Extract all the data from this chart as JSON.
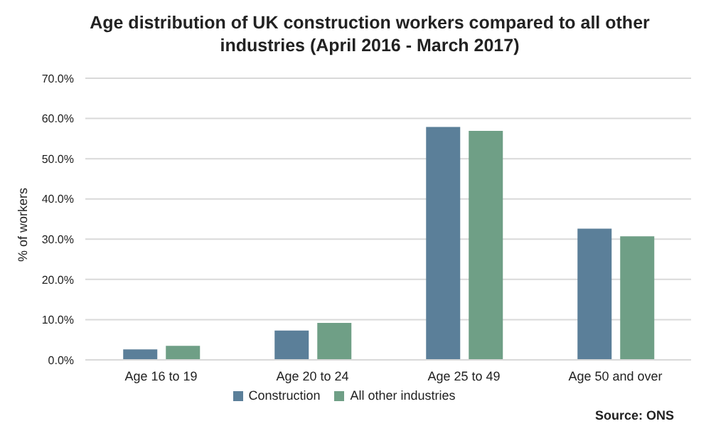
{
  "chart_data": {
    "type": "bar",
    "title": "Age distribution of UK construction workers compared to all other industries (April 2016 - March 2017)",
    "ylabel": "% of workers",
    "categories": [
      "Age 16 to 19",
      "Age 20 to 24",
      "Age 25 to 49",
      "Age 50 and over"
    ],
    "series": [
      {
        "name": "Construction",
        "color": "#5b7f99",
        "values": [
          2.6,
          7.3,
          57.9,
          32.6
        ]
      },
      {
        "name": "All other industries",
        "color": "#6f9f86",
        "values": [
          3.5,
          9.2,
          56.9,
          30.7
        ]
      }
    ],
    "ylim": [
      0,
      70
    ],
    "yticks": [
      {
        "value": 0,
        "label": "0.0%"
      },
      {
        "value": 10,
        "label": "10.0%"
      },
      {
        "value": 20,
        "label": "20.0%"
      },
      {
        "value": 30,
        "label": "30.0%"
      },
      {
        "value": 40,
        "label": "40.0%"
      },
      {
        "value": 50,
        "label": "50.0%"
      },
      {
        "value": 60,
        "label": "60.0%"
      },
      {
        "value": 70,
        "label": "70.0%"
      }
    ],
    "grid": "y",
    "legend": "bottom",
    "annotations": [
      "Source: ONS"
    ]
  }
}
